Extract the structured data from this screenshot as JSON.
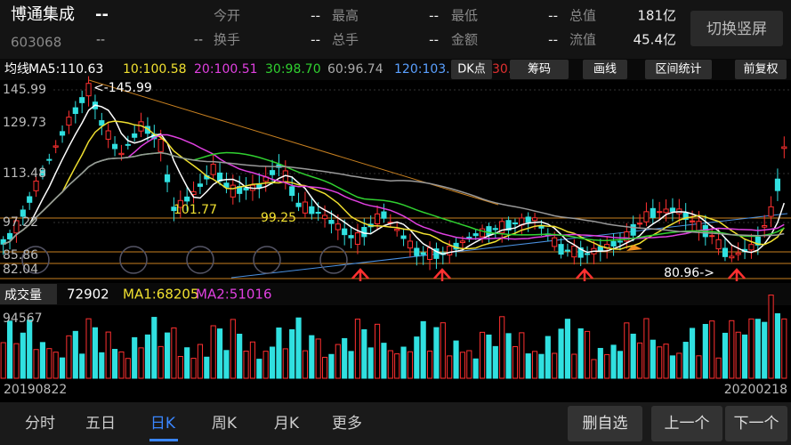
{
  "header": {
    "name": "博通集成",
    "price": "--",
    "code": "603068",
    "change": "--",
    "change_pct": "--",
    "button": "切换竖屏"
  },
  "stats": [
    [
      {
        "label": "今开",
        "value": "--"
      },
      {
        "label": "最高",
        "value": "--"
      },
      {
        "label": "最低",
        "value": "--"
      },
      {
        "label": "总值",
        "value": "181亿"
      }
    ],
    [
      {
        "label": "换手",
        "value": "--"
      },
      {
        "label": "总手",
        "value": "--"
      },
      {
        "label": "金额",
        "value": "--"
      },
      {
        "label": "流值",
        "value": "45.4亿"
      }
    ]
  ],
  "ma_bar": {
    "label": "均线",
    "items": [
      "MA5:110.63",
      "10:100.58",
      "20:100.51",
      "30:98.70",
      "60:96.74",
      "120:103."
    ],
    "hidden": "30.",
    "buttons": [
      "DK点",
      "筹码",
      "画线",
      "区间统计",
      "前复权"
    ]
  },
  "price_axis": [
    "145.99",
    "129.73",
    "113.48",
    "97.22",
    "85.86",
    "82.04"
  ],
  "annotations": [
    "<-145.99",
    "101.77",
    "99.25",
    "80.96->"
  ],
  "volume": {
    "label": "成交量",
    "value": "72902",
    "ma1": "MA1:68205",
    "ma2": "MA2:51016",
    "axis": "94567"
  },
  "dates": [
    "20190822",
    "20200218"
  ],
  "tabs": [
    "分时",
    "五日",
    "日K",
    "周K",
    "月K",
    "更多"
  ],
  "actions": [
    "删自选",
    "上一个",
    "下一个"
  ]
}
